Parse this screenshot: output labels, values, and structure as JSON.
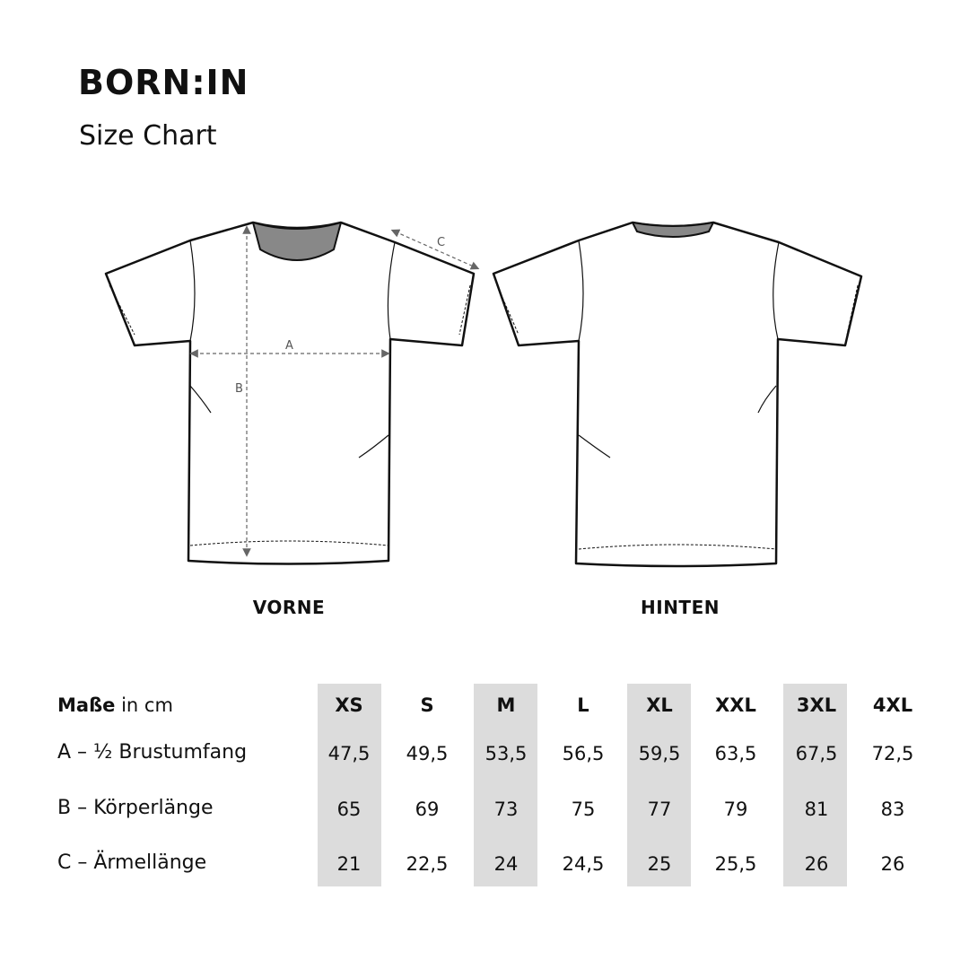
{
  "brand": "BORN:IN",
  "subtitle": "Size Chart",
  "views": {
    "front": "VORNE",
    "back": "HINTEN"
  },
  "measure_labels": {
    "a": "A",
    "b": "B",
    "c": "C"
  },
  "table": {
    "header_bold": "Maße",
    "header_rest": " in cm",
    "sizes": [
      "XS",
      "S",
      "M",
      "L",
      "XL",
      "XXL",
      "3XL",
      "4XL"
    ],
    "highlighted_sizes": [
      "XS",
      "M",
      "XL",
      "3XL"
    ],
    "highlight_color": "#dcdcdc",
    "rows": [
      {
        "label": "A – ½ Brustumfang",
        "values": [
          "47,5",
          "49,5",
          "53,5",
          "56,5",
          "59,5",
          "63,5",
          "67,5",
          "72,5"
        ]
      },
      {
        "label": "B – Körperlänge",
        "values": [
          "65",
          "69",
          "73",
          "75",
          "77",
          "79",
          "81",
          "83"
        ]
      },
      {
        "label": "C – Ärmellänge",
        "values": [
          "21",
          "22,5",
          "24",
          "24,5",
          "25",
          "25,5",
          "26",
          "26"
        ]
      }
    ]
  }
}
